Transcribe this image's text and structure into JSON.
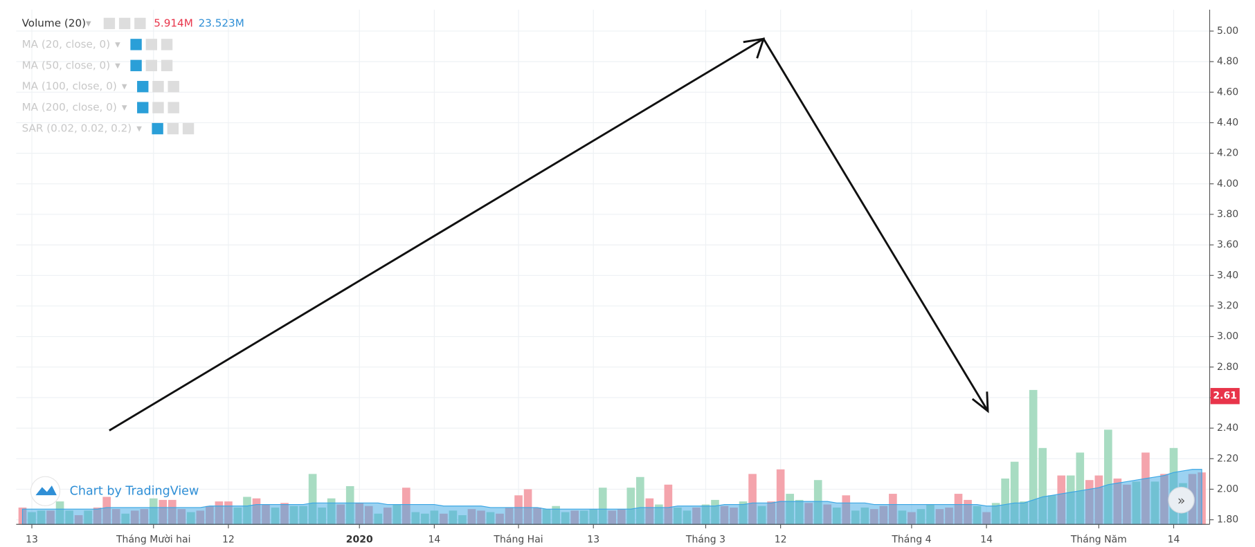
{
  "chart_data": {
    "type": "bar",
    "legend_title": "Volume (20)",
    "legend_values": [
      "5.914M",
      "23.523M"
    ],
    "legend_value_colors": [
      "#e8344a",
      "#2f8fd6"
    ],
    "indicators": [
      "MA (20, close, 0)",
      "MA (50, close, 0)",
      "MA (100, close, 0)",
      "MA (200, close, 0)",
      "SAR (0.02, 0.02, 0.2)"
    ],
    "credit": "Chart by TradingView",
    "categories": [
      null,
      "13",
      null,
      null,
      null,
      null,
      null,
      null,
      null,
      null,
      null,
      null,
      null,
      null,
      "Tháng Mười hai",
      null,
      null,
      null,
      null,
      null,
      null,
      null,
      "12",
      null,
      null,
      null,
      null,
      null,
      null,
      null,
      null,
      null,
      null,
      null,
      null,
      null,
      "2020",
      null,
      null,
      null,
      null,
      null,
      null,
      null,
      "14",
      null,
      null,
      null,
      null,
      null,
      null,
      null,
      null,
      "Tháng Hai",
      null,
      null,
      null,
      null,
      null,
      null,
      null,
      "13",
      null,
      null,
      null,
      null,
      null,
      null,
      null,
      null,
      null,
      null,
      null,
      "Tháng 3",
      null,
      null,
      null,
      null,
      null,
      null,
      null,
      "12",
      null,
      null,
      null,
      null,
      null,
      null,
      null,
      null,
      null,
      null,
      null,
      null,
      null,
      "Tháng 4",
      null,
      null,
      null,
      null,
      null,
      null,
      null,
      "14",
      null,
      null,
      null,
      null,
      null,
      null,
      null,
      null,
      null,
      null,
      null,
      "Tháng Năm",
      null,
      null,
      null,
      null,
      null,
      null,
      null,
      "14",
      null,
      null,
      null
    ],
    "bold_categories": [
      "2020"
    ],
    "values": [
      1.88,
      1.85,
      1.86,
      1.86,
      1.92,
      1.86,
      1.83,
      1.86,
      1.88,
      1.95,
      1.87,
      1.84,
      1.86,
      1.87,
      1.94,
      1.93,
      1.93,
      1.87,
      1.85,
      1.86,
      1.89,
      1.92,
      1.92,
      1.88,
      1.95,
      1.94,
      1.9,
      1.88,
      1.91,
      1.89,
      1.89,
      2.1,
      1.88,
      1.94,
      1.9,
      2.02,
      1.91,
      1.89,
      1.84,
      1.88,
      1.9,
      2.01,
      1.85,
      1.84,
      1.86,
      1.84,
      1.86,
      1.83,
      1.87,
      1.86,
      1.85,
      1.84,
      1.88,
      1.96,
      2.0,
      1.88,
      1.87,
      1.89,
      1.85,
      1.86,
      1.86,
      1.87,
      2.01,
      1.86,
      1.87,
      2.01,
      2.08,
      1.94,
      1.9,
      2.03,
      1.88,
      1.86,
      1.88,
      1.9,
      1.93,
      1.89,
      1.88,
      1.92,
      2.1,
      1.89,
      1.92,
      2.13,
      1.97,
      1.93,
      1.91,
      2.06,
      1.9,
      1.88,
      1.96,
      1.86,
      1.88,
      1.87,
      1.89,
      1.97,
      1.86,
      1.85,
      1.87,
      1.9,
      1.87,
      1.88,
      1.97,
      1.93,
      1.89,
      1.85,
      1.91,
      2.07,
      2.18,
      1.92,
      2.65,
      2.27,
      1.96,
      2.09,
      2.09,
      2.24,
      2.06,
      2.09,
      2.39,
      2.07,
      2.03,
      2.05,
      2.24,
      2.05,
      2.1,
      2.27,
      2.04,
      2.1,
      2.11
    ],
    "colors": [
      "#f4a4ac",
      "#a8dcc2",
      "#a8dcc2",
      "#f4a4ac",
      "#a8dcc2",
      "#a8dcc2",
      "#f4a4ac",
      "#a8dcc2",
      "#f4a4ac",
      "#f4a4ac",
      "#f4a4ac",
      "#a8dcc2",
      "#f4a4ac",
      "#f4a4ac",
      "#a8dcc2",
      "#f4a4ac",
      "#f4a4ac",
      "#f4a4ac",
      "#a8dcc2",
      "#f4a4ac",
      "#f4a4ac",
      "#f4a4ac",
      "#f4a4ac",
      "#a8dcc2",
      "#a8dcc2",
      "#f4a4ac",
      "#f4a4ac",
      "#a8dcc2",
      "#f4a4ac",
      "#a8dcc2",
      "#a8dcc2",
      "#a8dcc2",
      "#a8dcc2",
      "#a8dcc2",
      "#f4a4ac",
      "#a8dcc2",
      "#f4a4ac",
      "#f4a4ac",
      "#a8dcc2",
      "#f4a4ac",
      "#a8dcc2",
      "#f4a4ac",
      "#a8dcc2",
      "#a8dcc2",
      "#a8dcc2",
      "#f4a4ac",
      "#a8dcc2",
      "#a8dcc2",
      "#f4a4ac",
      "#f4a4ac",
      "#a8dcc2",
      "#f4a4ac",
      "#f4a4ac",
      "#f4a4ac",
      "#f4a4ac",
      "#f4a4ac",
      "#a8dcc2",
      "#a8dcc2",
      "#a8dcc2",
      "#f4a4ac",
      "#a8dcc2",
      "#a8dcc2",
      "#a8dcc2",
      "#f4a4ac",
      "#f4a4ac",
      "#a8dcc2",
      "#a8dcc2",
      "#f4a4ac",
      "#a8dcc2",
      "#f4a4ac",
      "#a8dcc2",
      "#a8dcc2",
      "#f4a4ac",
      "#a8dcc2",
      "#a8dcc2",
      "#f4a4ac",
      "#f4a4ac",
      "#a8dcc2",
      "#f4a4ac",
      "#a8dcc2",
      "#f4a4ac",
      "#f4a4ac",
      "#a8dcc2",
      "#a8dcc2",
      "#f4a4ac",
      "#a8dcc2",
      "#f4a4ac",
      "#a8dcc2",
      "#f4a4ac",
      "#a8dcc2",
      "#a8dcc2",
      "#f4a4ac",
      "#f4a4ac",
      "#f4a4ac",
      "#a8dcc2",
      "#f4a4ac",
      "#a8dcc2",
      "#a8dcc2",
      "#f4a4ac",
      "#f4a4ac",
      "#f4a4ac",
      "#f4a4ac",
      "#a8dcc2",
      "#f4a4ac",
      "#a8dcc2",
      "#a8dcc2",
      "#a8dcc2",
      "#a8dcc2",
      "#a8dcc2",
      "#a8dcc2",
      "#a8dcc2",
      "#f4a4ac",
      "#a8dcc2",
      "#a8dcc2",
      "#f4a4ac",
      "#f4a4ac",
      "#a8dcc2",
      "#f4a4ac",
      "#f4a4ac",
      "#a8dcc2",
      "#f4a4ac",
      "#a8dcc2",
      "#f4a4ac",
      "#a8dcc2",
      "#a8dcc2",
      "#f4a4ac",
      "#f4a4ac"
    ],
    "ma_color": "#3aa6e4",
    "ma_values": [
      1.87,
      1.87,
      1.87,
      1.87,
      1.87,
      1.87,
      1.87,
      1.87,
      1.87,
      1.88,
      1.88,
      1.88,
      1.88,
      1.88,
      1.88,
      1.88,
      1.88,
      1.88,
      1.88,
      1.88,
      1.89,
      1.89,
      1.89,
      1.89,
      1.89,
      1.9,
      1.9,
      1.9,
      1.9,
      1.9,
      1.9,
      1.91,
      1.91,
      1.91,
      1.91,
      1.91,
      1.91,
      1.91,
      1.91,
      1.9,
      1.9,
      1.9,
      1.9,
      1.9,
      1.9,
      1.89,
      1.89,
      1.89,
      1.89,
      1.89,
      1.88,
      1.88,
      1.88,
      1.88,
      1.88,
      1.88,
      1.87,
      1.87,
      1.87,
      1.87,
      1.87,
      1.87,
      1.87,
      1.87,
      1.87,
      1.87,
      1.88,
      1.88,
      1.88,
      1.88,
      1.89,
      1.89,
      1.89,
      1.89,
      1.89,
      1.9,
      1.9,
      1.9,
      1.91,
      1.91,
      1.91,
      1.92,
      1.92,
      1.92,
      1.92,
      1.92,
      1.92,
      1.91,
      1.91,
      1.91,
      1.91,
      1.9,
      1.9,
      1.9,
      1.9,
      1.9,
      1.9,
      1.9,
      1.9,
      1.9,
      1.9,
      1.9,
      1.9,
      1.89,
      1.89,
      1.9,
      1.91,
      1.91,
      1.93,
      1.95,
      1.96,
      1.97,
      1.98,
      1.99,
      2.0,
      2.01,
      2.03,
      2.04,
      2.05,
      2.06,
      2.07,
      2.08,
      2.09,
      2.11,
      2.12,
      2.13,
      2.13
    ],
    "last_price": 2.61,
    "last_price_color": "#e8344a",
    "ylim": [
      1.77,
      5.14
    ],
    "yticks": [
      {
        "value": 1.8,
        "label": "1.80"
      },
      {
        "value": 2,
        "label": "2.00"
      },
      {
        "value": 2.2,
        "label": "2.20"
      },
      {
        "value": 2.4,
        "label": "2.40"
      },
      {
        "value": 2.6,
        "label": "2.60"
      },
      {
        "value": 2.8,
        "label": "2.80"
      },
      {
        "value": 3,
        "label": "3.00"
      },
      {
        "value": 3.2,
        "label": "3.20"
      },
      {
        "value": 3.4,
        "label": "3.40"
      },
      {
        "value": 3.6,
        "label": "3.60"
      },
      {
        "value": 3.8,
        "label": "3.80"
      },
      {
        "value": 4,
        "label": "4.00"
      },
      {
        "value": 4.2,
        "label": "4.20"
      },
      {
        "value": 4.4,
        "label": "4.40"
      },
      {
        "value": 4.6,
        "label": "4.60"
      },
      {
        "value": 4.8,
        "label": "4.80"
      },
      {
        "value": 5,
        "label": "5.00"
      }
    ],
    "grid": true
  }
}
